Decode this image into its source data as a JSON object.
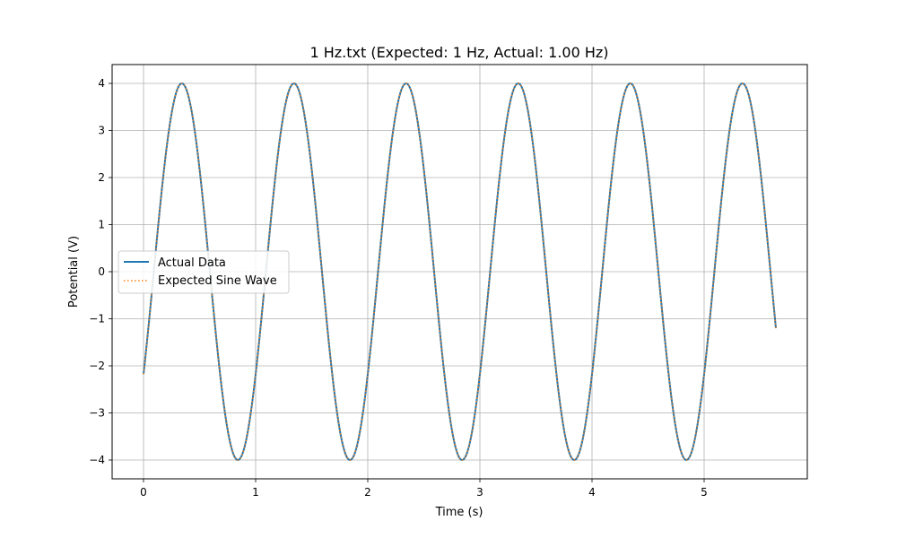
{
  "chart_data": {
    "type": "line",
    "title": "1 Hz.txt (Expected: 1 Hz, Actual: 1.00 Hz)",
    "xlabel": "Time (s)",
    "ylabel": "Potential (V)",
    "xlim": [
      -0.28,
      5.92
    ],
    "ylim": [
      -4.4,
      4.4
    ],
    "x_ticks": [
      0,
      1,
      2,
      3,
      4,
      5
    ],
    "y_ticks": [
      -4,
      -3,
      -2,
      -1,
      0,
      1,
      2,
      3,
      4
    ],
    "x_tick_labels": [
      "0",
      "1",
      "2",
      "3",
      "4",
      "5"
    ],
    "y_tick_labels": [
      "−4",
      "−3",
      "−2",
      "−1",
      "0",
      "1",
      "2",
      "3",
      "4"
    ],
    "grid": true,
    "legend_position": "center-left",
    "series": [
      {
        "name": "Actual Data",
        "style": "solid",
        "color": "#1f77b4",
        "signal": {
          "amplitude": 4.0,
          "frequency_hz": 1.0,
          "phase_rad": -0.575,
          "x_start": 0,
          "x_end": 5.64
        }
      },
      {
        "name": "Expected Sine Wave",
        "style": "dotted",
        "color": "#ff7f0e",
        "signal": {
          "amplitude": 4.0,
          "frequency_hz": 1.0,
          "phase_rad": -0.575,
          "x_start": 0,
          "x_end": 5.64
        }
      }
    ]
  }
}
